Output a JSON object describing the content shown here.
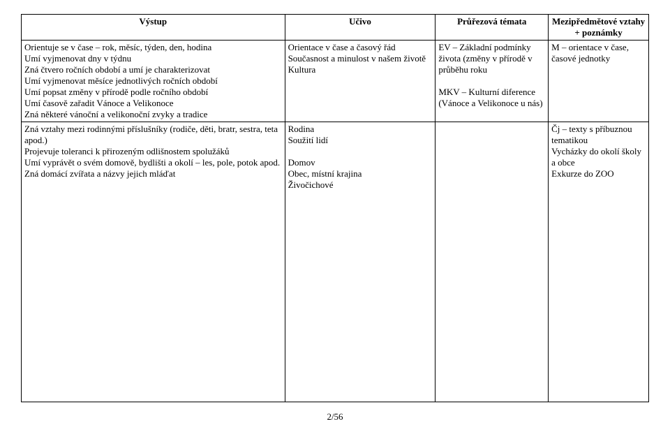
{
  "headers": {
    "col1": "Výstup",
    "col2": "Učivo",
    "col3": "Průřezová témata",
    "col4": "Mezipředmětové vztahy + poznámky"
  },
  "rows": [
    {
      "vystup": "Orientuje se v čase – rok, měsíc, týden, den, hodina\nUmí vyjmenovat dny v týdnu\nZná čtvero ročních období a umí je charakterizovat\nUmí vyjmenovat měsíce jednotlivých ročních období\nUmí popsat změny v přírodě podle ročního období\nUmí časově zařadit Vánoce a Velikonoce\nZná některé vánoční a velikonoční zvyky a tradice",
      "ucivo": "Orientace v čase a časový řád\nSoučasnost a minulost v našem životě\nKultura",
      "temata": "EV – Základní podmínky života (změny v přírodě v průběhu roku\n\nMKV – Kulturní diference (Vánoce a Velikonoce u nás)",
      "vztahy": "M – orientace v čase, časové jednotky"
    },
    {
      "vystup": "Zná vztahy mezi rodinnými příslušníky (rodiče, děti, bratr, sestra, teta apod.)\nProjevuje toleranci k přirozeným odlišnostem  spolužáků\nUmí vyprávět o  svém domově, bydlišti a okolí – les, pole, potok apod.\nZná domácí zvířata a názvy jejich mláďat",
      "ucivo": "Rodina\nSoužití lidí\n\nDomov\nObec, místní krajina\nŽivočichové",
      "temata": "",
      "vztahy": "Čj – texty s příbuznou tematikou\nVycházky do okolí školy a obce\nExkurze do ZOO"
    }
  ],
  "page_number": "2/56"
}
